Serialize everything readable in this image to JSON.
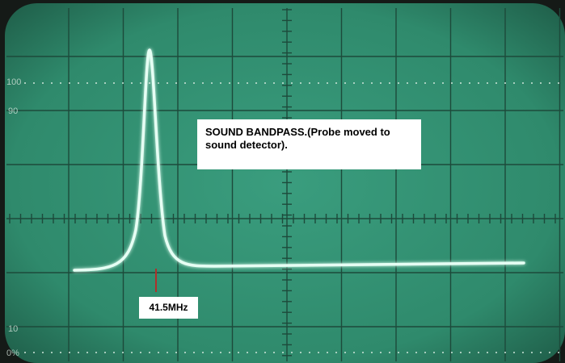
{
  "annotations": {
    "caption": "SOUND BANDPASS.(Probe moved to sound detector).",
    "marker": "41.5MHz"
  },
  "graticule_labels": [
    "100",
    "90",
    "10",
    "0%"
  ]
}
